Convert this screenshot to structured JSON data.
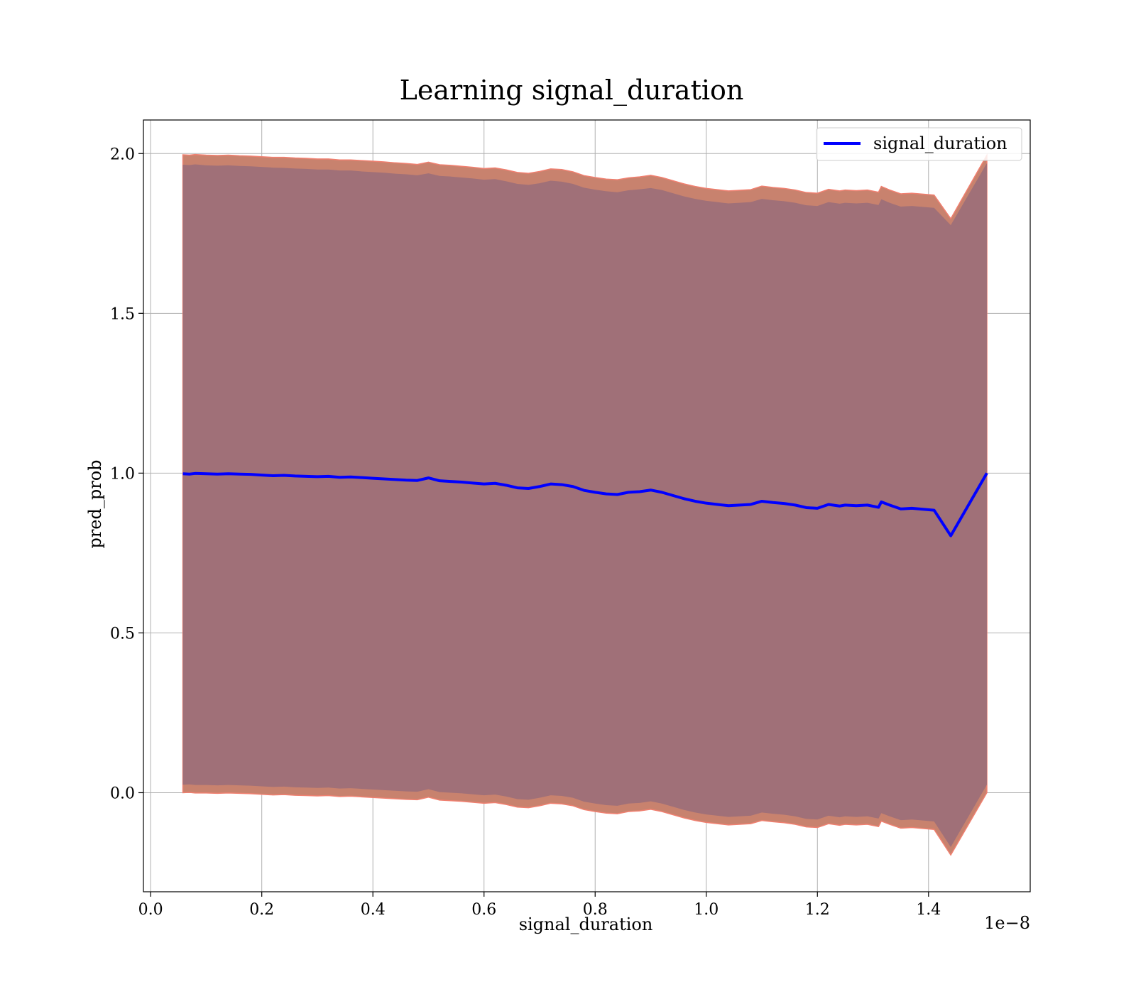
{
  "chart_data": {
    "type": "line",
    "title": "Learning signal_duration",
    "xlabel": "signal_duration",
    "ylabel": "pred_prob",
    "x_offset_label": "1e−8",
    "xlim": [
      -0.013,
      1.583
    ],
    "ylim": [
      -0.31,
      2.105
    ],
    "xticks": [
      0.0,
      0.2,
      0.4,
      0.6,
      0.8,
      1.0,
      1.2,
      1.4
    ],
    "xtick_labels": [
      "0.0",
      "0.2",
      "0.4",
      "0.6",
      "0.8",
      "1.0",
      "1.2",
      "1.4"
    ],
    "yticks": [
      0.0,
      0.5,
      1.0,
      1.5,
      2.0
    ],
    "ytick_labels": [
      "0.0",
      "0.5",
      "1.0",
      "1.5",
      "2.0"
    ],
    "grid": true,
    "legend_position": "top-right",
    "colors": {
      "line": "#0000ff",
      "outer_band": "#c8826e",
      "outer_band_edge": "#f08070",
      "inner_band": "#a07078",
      "grid": "#b0b0b0"
    },
    "series": [
      {
        "name": "signal_duration",
        "x": [
          0.058,
          0.07,
          0.08,
          0.1,
          0.12,
          0.14,
          0.16,
          0.18,
          0.2,
          0.22,
          0.24,
          0.26,
          0.28,
          0.3,
          0.32,
          0.34,
          0.36,
          0.38,
          0.4,
          0.42,
          0.44,
          0.46,
          0.48,
          0.5,
          0.52,
          0.54,
          0.56,
          0.58,
          0.6,
          0.62,
          0.64,
          0.66,
          0.68,
          0.7,
          0.72,
          0.74,
          0.76,
          0.78,
          0.8,
          0.82,
          0.84,
          0.86,
          0.88,
          0.9,
          0.92,
          0.94,
          0.96,
          0.98,
          1.0,
          1.02,
          1.04,
          1.06,
          1.08,
          1.1,
          1.12,
          1.14,
          1.16,
          1.18,
          1.2,
          1.22,
          1.24,
          1.25,
          1.27,
          1.29,
          1.31,
          1.315,
          1.33,
          1.35,
          1.37,
          1.41,
          1.44,
          1.505
        ],
        "y": [
          0.998,
          0.997,
          0.999,
          0.998,
          0.997,
          0.998,
          0.997,
          0.996,
          0.994,
          0.992,
          0.993,
          0.991,
          0.99,
          0.989,
          0.99,
          0.987,
          0.988,
          0.986,
          0.984,
          0.982,
          0.98,
          0.978,
          0.977,
          0.985,
          0.976,
          0.974,
          0.972,
          0.969,
          0.966,
          0.968,
          0.962,
          0.954,
          0.952,
          0.958,
          0.966,
          0.964,
          0.958,
          0.946,
          0.94,
          0.935,
          0.933,
          0.94,
          0.942,
          0.947,
          0.94,
          0.93,
          0.92,
          0.912,
          0.906,
          0.902,
          0.898,
          0.9,
          0.902,
          0.912,
          0.908,
          0.905,
          0.9,
          0.892,
          0.89,
          0.902,
          0.897,
          0.9,
          0.898,
          0.9,
          0.893,
          0.91,
          0.9,
          0.888,
          0.89,
          0.884,
          0.804,
          1.0
        ],
        "band_inner_upper": [
          1.965,
          1.964,
          1.966,
          1.963,
          1.962,
          1.963,
          1.961,
          1.96,
          1.958,
          1.956,
          1.955,
          1.953,
          1.952,
          1.95,
          1.95,
          1.947,
          1.947,
          1.944,
          1.942,
          1.94,
          1.937,
          1.935,
          1.932,
          1.938,
          1.93,
          1.928,
          1.925,
          1.922,
          1.918,
          1.92,
          1.913,
          1.905,
          1.902,
          1.907,
          1.915,
          1.912,
          1.905,
          1.893,
          1.887,
          1.882,
          1.879,
          1.885,
          1.888,
          1.892,
          1.886,
          1.876,
          1.866,
          1.858,
          1.852,
          1.848,
          1.844,
          1.846,
          1.848,
          1.858,
          1.854,
          1.851,
          1.846,
          1.838,
          1.836,
          1.848,
          1.843,
          1.846,
          1.844,
          1.846,
          1.839,
          1.857,
          1.846,
          1.834,
          1.836,
          1.83,
          1.776,
          1.97
        ],
        "band_outer_upper": [
          1.996,
          1.995,
          1.997,
          1.995,
          1.994,
          1.995,
          1.993,
          1.992,
          1.99,
          1.988,
          1.988,
          1.986,
          1.985,
          1.983,
          1.983,
          1.98,
          1.98,
          1.978,
          1.976,
          1.974,
          1.971,
          1.969,
          1.966,
          1.973,
          1.965,
          1.963,
          1.96,
          1.957,
          1.953,
          1.955,
          1.949,
          1.941,
          1.938,
          1.944,
          1.952,
          1.95,
          1.943,
          1.931,
          1.925,
          1.92,
          1.918,
          1.924,
          1.927,
          1.932,
          1.925,
          1.915,
          1.905,
          1.897,
          1.891,
          1.887,
          1.883,
          1.885,
          1.887,
          1.898,
          1.894,
          1.891,
          1.886,
          1.878,
          1.876,
          1.888,
          1.883,
          1.886,
          1.884,
          1.886,
          1.879,
          1.897,
          1.886,
          1.874,
          1.876,
          1.87,
          1.796,
          1.995
        ],
        "band_inner_lower": [
          0.025,
          0.026,
          0.024,
          0.024,
          0.023,
          0.024,
          0.023,
          0.022,
          0.02,
          0.018,
          0.019,
          0.017,
          0.016,
          0.015,
          0.016,
          0.013,
          0.014,
          0.012,
          0.01,
          0.008,
          0.006,
          0.004,
          0.003,
          0.011,
          0.002,
          0.0,
          -0.002,
          -0.005,
          -0.008,
          -0.006,
          -0.012,
          -0.02,
          -0.022,
          -0.016,
          -0.008,
          -0.01,
          -0.016,
          -0.028,
          -0.034,
          -0.039,
          -0.041,
          -0.034,
          -0.032,
          -0.027,
          -0.034,
          -0.044,
          -0.054,
          -0.062,
          -0.068,
          -0.072,
          -0.076,
          -0.074,
          -0.072,
          -0.062,
          -0.066,
          -0.069,
          -0.074,
          -0.082,
          -0.084,
          -0.072,
          -0.077,
          -0.074,
          -0.076,
          -0.074,
          -0.081,
          -0.064,
          -0.074,
          -0.086,
          -0.084,
          -0.09,
          -0.17,
          0.025
        ],
        "band_outer_lower": [
          0.0,
          0.001,
          -0.001,
          -0.001,
          -0.002,
          -0.001,
          -0.002,
          -0.003,
          -0.005,
          -0.007,
          -0.006,
          -0.008,
          -0.009,
          -0.01,
          -0.009,
          -0.012,
          -0.011,
          -0.013,
          -0.015,
          -0.017,
          -0.019,
          -0.021,
          -0.022,
          -0.014,
          -0.023,
          -0.025,
          -0.027,
          -0.03,
          -0.033,
          -0.031,
          -0.037,
          -0.045,
          -0.047,
          -0.041,
          -0.033,
          -0.035,
          -0.041,
          -0.053,
          -0.059,
          -0.064,
          -0.066,
          -0.059,
          -0.057,
          -0.052,
          -0.059,
          -0.069,
          -0.079,
          -0.087,
          -0.093,
          -0.097,
          -0.101,
          -0.099,
          -0.097,
          -0.087,
          -0.091,
          -0.094,
          -0.099,
          -0.107,
          -0.109,
          -0.097,
          -0.102,
          -0.099,
          -0.101,
          -0.099,
          -0.106,
          -0.089,
          -0.099,
          -0.111,
          -0.109,
          -0.115,
          -0.195,
          0.0
        ]
      }
    ]
  }
}
